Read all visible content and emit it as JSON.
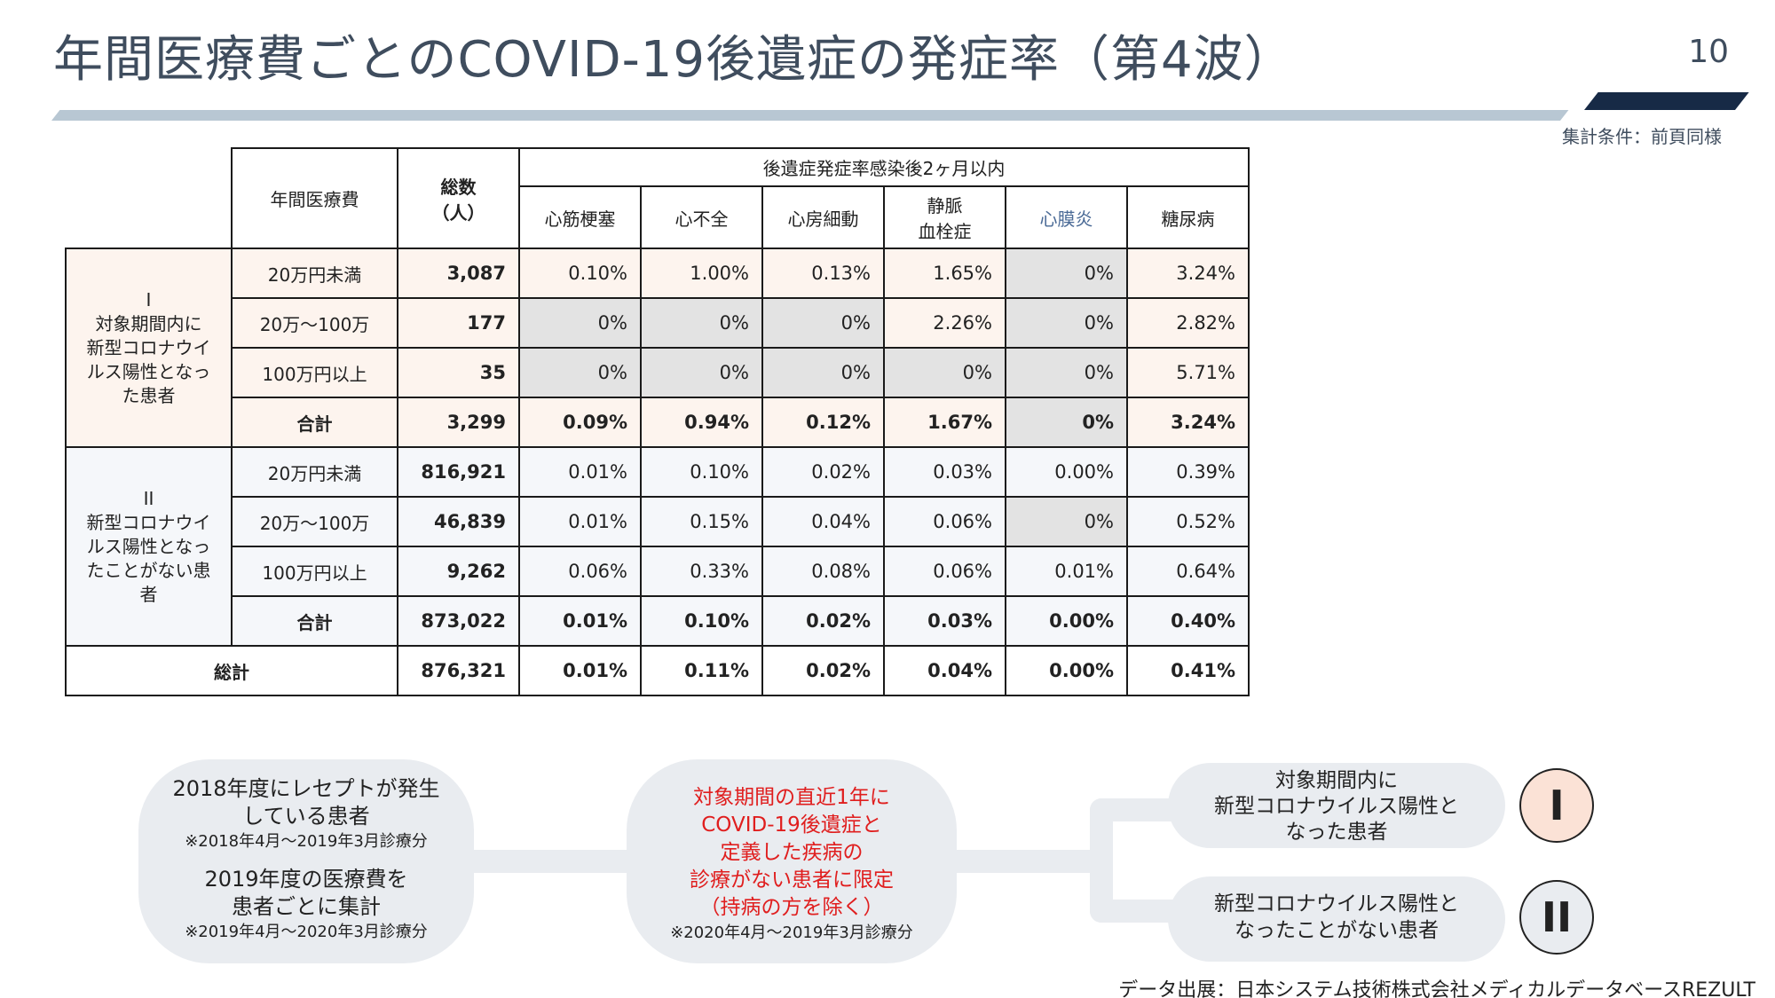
{
  "title": "年間医療費ごとのCOVID-19後遺症の発症率（第4波）",
  "page_number": "10",
  "condition_note": "集計条件：前頁同様",
  "table": {
    "col_cost": "年間医療費",
    "col_total_line1": "総数",
    "col_total_line2": "（人）",
    "col_group": "後遺症発症率感染後2ヶ月以内",
    "conditions": [
      {
        "line1": "心筋梗塞",
        "line2": ""
      },
      {
        "line1": "心不全",
        "line2": ""
      },
      {
        "line1": "心房細動",
        "line2": ""
      },
      {
        "line1": "静脈",
        "line2": "血栓症"
      },
      {
        "line1": "心膜炎",
        "line2": ""
      },
      {
        "line1": "糖尿病",
        "line2": ""
      }
    ],
    "group1": {
      "label_lines": [
        "I",
        "対象期間内に",
        "新型コロナウイ",
        "ルス陽性となっ",
        "た患者"
      ],
      "rows": [
        {
          "cost": "20万円未満",
          "total": "3,087",
          "values": [
            "0.10%",
            "1.00%",
            "0.13%",
            "1.65%",
            "0%",
            "3.24%"
          ]
        },
        {
          "cost": "20万～100万",
          "total": "177",
          "values": [
            "0%",
            "0%",
            "0%",
            "2.26%",
            "0%",
            "2.82%"
          ]
        },
        {
          "cost": "100万円以上",
          "total": "35",
          "values": [
            "0%",
            "0%",
            "0%",
            "0%",
            "0%",
            "5.71%"
          ]
        }
      ],
      "subtotal": {
        "cost": "合計",
        "total": "3,299",
        "values": [
          "0.09%",
          "0.94%",
          "0.12%",
          "1.67%",
          "0%",
          "3.24%"
        ]
      }
    },
    "group2": {
      "label_lines": [
        "II",
        "新型コロナウイ",
        "ルス陽性となっ",
        "たことがない患",
        "者"
      ],
      "rows": [
        {
          "cost": "20万円未満",
          "total": "816,921",
          "values": [
            "0.01%",
            "0.10%",
            "0.02%",
            "0.03%",
            "0.00%",
            "0.39%"
          ]
        },
        {
          "cost": "20万～100万",
          "total": "46,839",
          "values": [
            "0.01%",
            "0.15%",
            "0.04%",
            "0.06%",
            "0%",
            "0.52%"
          ]
        },
        {
          "cost": "100万円以上",
          "total": "9,262",
          "values": [
            "0.06%",
            "0.33%",
            "0.08%",
            "0.06%",
            "0.01%",
            "0.64%"
          ]
        }
      ],
      "subtotal": {
        "cost": "合計",
        "total": "873,022",
        "values": [
          "0.01%",
          "0.10%",
          "0.02%",
          "0.03%",
          "0.00%",
          "0.40%"
        ]
      }
    },
    "grand_total": {
      "label": "総計",
      "total": "876,321",
      "values": [
        "0.01%",
        "0.11%",
        "0.02%",
        "0.04%",
        "0.00%",
        "0.41%"
      ]
    }
  },
  "flow": {
    "left": {
      "line1": "2018年度にレセプトが発生",
      "line2": "している患者",
      "note1": "※2018年4月～2019年3月診療分",
      "line3": "2019年度の医療費を",
      "line4": "患者ごとに集計",
      "note2": "※2019年4月～2020年3月診療分"
    },
    "middle": {
      "lines": [
        "対象期間の直近1年に",
        "COVID-19後遺症と",
        "定義した疾病の",
        "診療がない患者に限定",
        "（持病の方を除く）"
      ],
      "note": "※2020年4月～2019年3月診療分"
    },
    "top": {
      "lines": [
        "対象期間内に",
        "新型コロナウイルス陽性と",
        "なった患者"
      ],
      "badge": "I"
    },
    "bottom": {
      "lines": [
        "新型コロナウイルス陽性と",
        "なったことがない患者"
      ],
      "badge": "II"
    }
  },
  "source": "データ出展：日本システム技術株式会社メディカルデータベースREZULT",
  "colors": {
    "title": "#3f4d5e",
    "accent_dark": "#172a46",
    "group1_bg": "#fdf4ee",
    "grey_cell": "#e3e3e3",
    "red_text": "#e01e1e"
  }
}
